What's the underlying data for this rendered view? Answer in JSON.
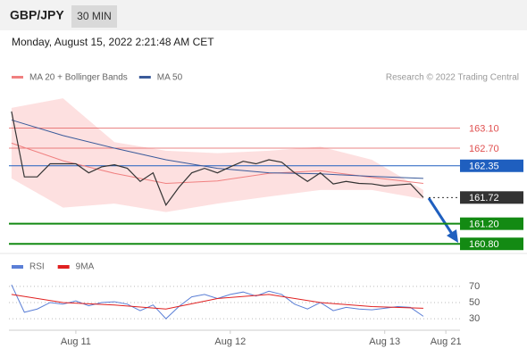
{
  "header": {
    "symbol": "GBP/JPY",
    "timeframe": "30 MIN",
    "timestamp": "Monday, August 15, 2022 2:21:48 AM CET"
  },
  "chart_data": [
    {
      "type": "line",
      "source": "Research © 2022 Trading Central",
      "xlim": [
        -10.4,
        59.7
      ],
      "ylim": [
        160.68,
        163.87
      ],
      "xticks": [
        {
          "value": 0,
          "label": "Aug 11"
        },
        {
          "value": 24,
          "label": "Aug 12"
        },
        {
          "value": 48,
          "label": "Aug 13"
        },
        {
          "value": 57.5,
          "label": "Aug 21"
        }
      ],
      "price": {
        "color": "#333333",
        "x": [
          -10,
          -8,
          -6,
          -4,
          -2,
          0,
          2,
          4,
          6,
          8,
          10,
          12,
          14,
          16,
          18,
          20,
          22,
          24,
          26,
          28,
          30,
          32,
          34,
          36,
          38,
          40,
          42,
          44,
          46,
          48,
          50,
          52,
          54
        ],
        "values": [
          163.43,
          162.13,
          162.13,
          162.39,
          162.39,
          162.39,
          162.21,
          162.33,
          162.37,
          162.3,
          162.04,
          162.21,
          161.57,
          161.92,
          162.21,
          162.3,
          162.21,
          162.33,
          162.44,
          162.39,
          162.47,
          162.42,
          162.21,
          162.04,
          162.21,
          161.99,
          162.04,
          162.0,
          161.99,
          161.95,
          161.97,
          161.99,
          161.72
        ]
      },
      "x": [
        -10,
        -2,
        6,
        14,
        22,
        30,
        38,
        46,
        54
      ],
      "series": [
        {
          "name": "MA 20 + Bollinger Bands",
          "color": "#f08080",
          "band_color": "#fde0e0",
          "values": [
            162.8,
            162.45,
            162.2,
            162.0,
            162.05,
            162.2,
            162.25,
            162.12,
            162.0
          ],
          "upper": [
            163.5,
            163.69,
            162.82,
            162.65,
            162.6,
            162.65,
            162.73,
            162.47,
            161.87
          ],
          "lower": [
            162.1,
            161.52,
            161.6,
            161.43,
            161.6,
            161.74,
            161.87,
            161.87,
            161.69
          ]
        },
        {
          "name": "MA 50",
          "color": "#3a5a9a",
          "values": [
            163.26,
            162.95,
            162.7,
            162.47,
            162.3,
            162.21,
            162.19,
            162.14,
            162.1
          ]
        }
      ],
      "levels": [
        {
          "value": 163.1,
          "label": "163.10",
          "color": "#e05050",
          "style": "line"
        },
        {
          "value": 162.7,
          "label": "162.70",
          "color": "#e05050",
          "style": "line"
        },
        {
          "value": 162.35,
          "label": "162.35",
          "color": "#1f5fbf",
          "style": "box"
        },
        {
          "value": 161.72,
          "label": "161.72",
          "color": "#333333",
          "style": "current"
        },
        {
          "value": 161.2,
          "label": "161.20",
          "color": "#138a13",
          "style": "box"
        },
        {
          "value": 160.8,
          "label": "160.80",
          "color": "#138a13",
          "style": "box"
        }
      ]
    },
    {
      "type": "line",
      "ylim": [
        18,
        93
      ],
      "yticks": [
        30,
        50,
        70
      ],
      "x": [
        -10,
        -8,
        -6,
        -4,
        -2,
        0,
        2,
        4,
        6,
        8,
        10,
        12,
        14,
        16,
        18,
        20,
        22,
        24,
        26,
        28,
        30,
        32,
        34,
        36,
        38,
        40,
        42,
        44,
        46,
        48,
        50,
        52,
        54
      ],
      "series": [
        {
          "name": "RSI",
          "color": "#5b7fd6",
          "values": [
            72,
            38,
            42,
            50,
            48,
            52,
            46,
            50,
            51,
            48,
            40,
            47,
            30,
            45,
            57,
            60,
            55,
            60,
            63,
            58,
            64,
            60,
            48,
            42,
            50,
            40,
            44,
            42,
            41,
            43,
            45,
            44,
            33
          ]
        },
        {
          "name": "9MA",
          "color": "#e02020",
          "x": [
            -10,
            -2,
            6,
            14,
            22,
            30,
            38,
            46,
            54
          ],
          "values": [
            60,
            50,
            47,
            42,
            55,
            60,
            50,
            45,
            43
          ]
        }
      ]
    }
  ]
}
